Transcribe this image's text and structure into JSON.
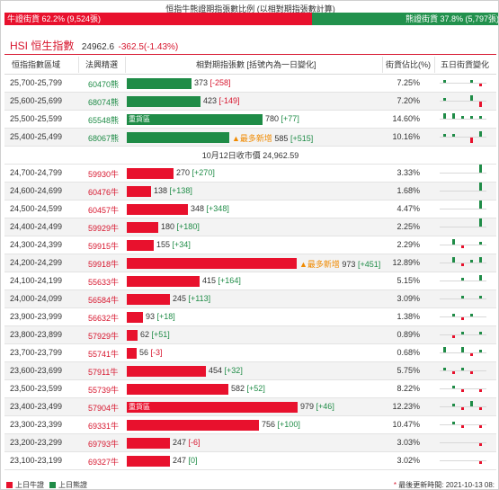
{
  "ratio": {
    "title": "恒指牛熊證期指張數比例 (以相對期指張數計算)",
    "bull_label": "牛證街貨 62.2% (9,524張)",
    "bear_label": "熊證街貨 37.8% (5,797張)",
    "bull_pct": 62.2,
    "bull_color": "#e8112d",
    "bear_color": "#22914d"
  },
  "index": {
    "name": "HSI 恒生指數",
    "value": "24962.6",
    "change": "-362.5(-1.43%)"
  },
  "headers": {
    "range": "恒指指數區域",
    "code": "法興精選",
    "contracts": "相對期指張數 [括號內為一日變化]",
    "pct": "街貨佔比(%)",
    "five_day": "五日街貨變化"
  },
  "closing_text": "10月12日收市價 24,962.59",
  "bar_max": 979,
  "bear_rows": [
    {
      "range": "25,700-25,799",
      "code": "60470熊",
      "contracts": 373,
      "chg": "[-258]",
      "tag": "",
      "newest": "",
      "pct": "7.25%",
      "spark": [
        1,
        0,
        0,
        1,
        -1
      ]
    },
    {
      "range": "25,600-25,699",
      "code": "68074熊",
      "contracts": 423,
      "chg": "[-149]",
      "tag": "",
      "newest": "",
      "pct": "7.20%",
      "spark": [
        1,
        0,
        0,
        2,
        -2
      ]
    },
    {
      "range": "25,500-25,599",
      "code": "65548熊",
      "contracts": 780,
      "chg": "[+77]",
      "tag": "重貨區",
      "newest": "",
      "pct": "14.60%",
      "spark": [
        2,
        2,
        1,
        1,
        1
      ]
    },
    {
      "range": "25,400-25,499",
      "code": "68067熊",
      "contracts": 585,
      "chg": "[+515]",
      "tag": "",
      "newest": "最多新增",
      "pct": "10.16%",
      "spark": [
        1,
        1,
        0,
        -2,
        2
      ]
    }
  ],
  "bull_rows": [
    {
      "range": "24,700-24,799",
      "code": "59930牛",
      "contracts": 270,
      "chg": "[+270]",
      "tag": "",
      "newest": "",
      "pct": "3.33%",
      "spark": [
        0,
        0,
        0,
        0,
        3
      ]
    },
    {
      "range": "24,600-24,699",
      "code": "60476牛",
      "contracts": 138,
      "chg": "[+138]",
      "tag": "",
      "newest": "",
      "pct": "1.68%",
      "spark": [
        0,
        0,
        0,
        0,
        3
      ]
    },
    {
      "range": "24,500-24,599",
      "code": "60457牛",
      "contracts": 348,
      "chg": "[+348]",
      "tag": "",
      "newest": "",
      "pct": "4.47%",
      "spark": [
        0,
        0,
        0,
        0,
        3
      ]
    },
    {
      "range": "24,400-24,499",
      "code": "59929牛",
      "contracts": 180,
      "chg": "[+180]",
      "tag": "",
      "newest": "",
      "pct": "2.25%",
      "spark": [
        0,
        0,
        0,
        0,
        3
      ]
    },
    {
      "range": "24,300-24,399",
      "code": "59915牛",
      "contracts": 155,
      "chg": "[+34]",
      "tag": "",
      "newest": "",
      "pct": "2.29%",
      "spark": [
        0,
        2,
        -1,
        0,
        1
      ]
    },
    {
      "range": "24,200-24,299",
      "code": "59918牛",
      "contracts": 973,
      "chg": "[+451]",
      "tag": "",
      "newest": "最多新增",
      "pct": "12.89%",
      "spark": [
        0,
        2,
        -1,
        1,
        2
      ]
    },
    {
      "range": "24,100-24,199",
      "code": "55633牛",
      "contracts": 415,
      "chg": "[+164]",
      "tag": "",
      "newest": "",
      "pct": "5.15%",
      "spark": [
        0,
        0,
        1,
        0,
        2
      ]
    },
    {
      "range": "24,000-24,099",
      "code": "56584牛",
      "contracts": 245,
      "chg": "[+113]",
      "tag": "",
      "newest": "",
      "pct": "3.09%",
      "spark": [
        0,
        0,
        1,
        0,
        1
      ]
    },
    {
      "range": "23,900-23,999",
      "code": "56632牛",
      "contracts": 93,
      "chg": "[+18]",
      "tag": "",
      "newest": "",
      "pct": "1.38%",
      "spark": [
        0,
        1,
        -1,
        1,
        0
      ]
    },
    {
      "range": "23,800-23,899",
      "code": "57929牛",
      "contracts": 62,
      "chg": "[+51]",
      "tag": "",
      "newest": "",
      "pct": "0.89%",
      "spark": [
        0,
        -1,
        1,
        0,
        1
      ]
    },
    {
      "range": "23,700-23,799",
      "code": "55741牛",
      "contracts": 56,
      "chg": "[-3]",
      "tag": "",
      "newest": "",
      "pct": "0.68%",
      "spark": [
        2,
        0,
        2,
        -1,
        1
      ]
    },
    {
      "range": "23,600-23,699",
      "code": "57911牛",
      "contracts": 454,
      "chg": "[+32]",
      "tag": "",
      "newest": "",
      "pct": "5.75%",
      "spark": [
        1,
        -1,
        1,
        -1,
        0
      ]
    },
    {
      "range": "23,500-23,599",
      "code": "55739牛",
      "contracts": 582,
      "chg": "[+52]",
      "tag": "",
      "newest": "",
      "pct": "8.22%",
      "spark": [
        0,
        1,
        -1,
        0,
        -1
      ]
    },
    {
      "range": "23,400-23,499",
      "code": "57904牛",
      "contracts": 979,
      "chg": "[+46]",
      "tag": "重貨區",
      "newest": "",
      "pct": "12.23%",
      "spark": [
        0,
        1,
        -1,
        2,
        -1
      ]
    },
    {
      "range": "23,300-23,399",
      "code": "69331牛",
      "contracts": 756,
      "chg": "[+100]",
      "tag": "",
      "newest": "",
      "pct": "10.47%",
      "spark": [
        0,
        1,
        -1,
        0,
        -1
      ]
    },
    {
      "range": "23,200-23,299",
      "code": "69793牛",
      "contracts": 247,
      "chg": "[-6]",
      "tag": "",
      "newest": "",
      "pct": "3.03%",
      "spark": [
        0,
        0,
        0,
        0,
        -1
      ]
    },
    {
      "range": "23,100-23,199",
      "code": "69327牛",
      "contracts": 247,
      "chg": "[0]",
      "tag": "",
      "newest": "",
      "pct": "3.02%",
      "spark": [
        0,
        0,
        0,
        0,
        -1
      ]
    }
  ],
  "footer": {
    "bull_legend": "上日牛證",
    "bear_legend": "上日熊證",
    "update_star": "*",
    "update_text": "最後更新時間: 2021-10-13 08:"
  }
}
